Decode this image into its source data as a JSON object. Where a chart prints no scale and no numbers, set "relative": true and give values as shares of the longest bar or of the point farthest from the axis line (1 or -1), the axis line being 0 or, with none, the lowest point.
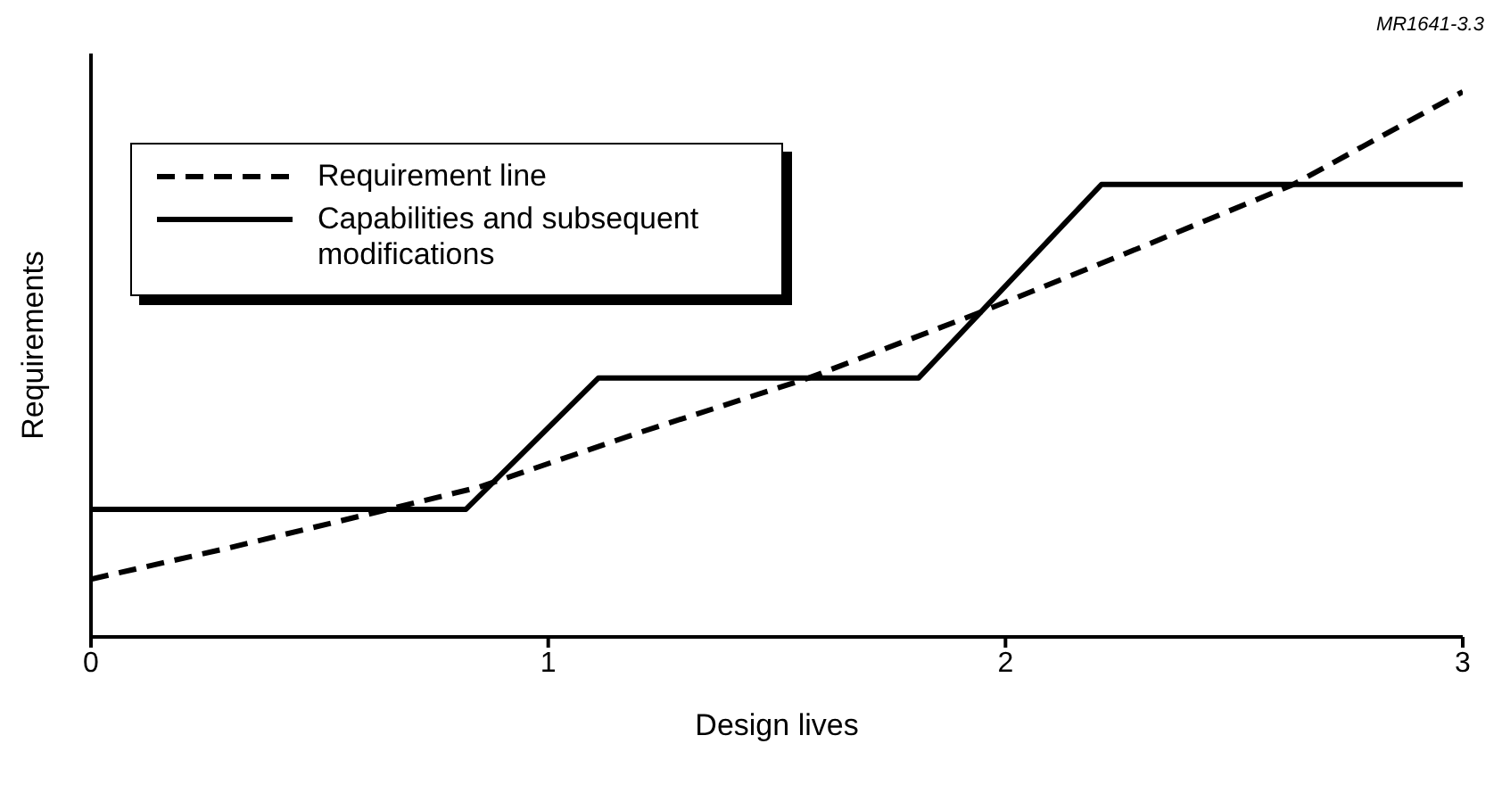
{
  "chart_data": {
    "type": "line",
    "xlabel": "Design lives",
    "ylabel": "Requirements",
    "relative": true,
    "xlim": [
      0,
      3
    ],
    "xticks": [
      0,
      1,
      2,
      3
    ],
    "legend": "top left",
    "grid": false,
    "marker": "none",
    "annotations": [
      "MR1641-3.3"
    ],
    "series": [
      {
        "name": "Requirement line",
        "color": "#000000",
        "line_style": "dashed",
        "x": [
          0,
          0.3,
          0.65,
          0.85,
          1.2,
          1.57,
          1.95,
          2.3,
          2.63,
          3
        ],
        "values": [
          0.106,
          0.163,
          0.234,
          0.275,
          0.375,
          0.475,
          0.597,
          0.716,
          0.83,
          1.0
        ]
      },
      {
        "name": "Capabilities and subsequent modifications",
        "color": "#000000",
        "line_style": "solid",
        "x": [
          0,
          0.82,
          1.11,
          1.81,
          2.21,
          3
        ],
        "values": [
          0.234,
          0.234,
          0.475,
          0.475,
          0.83,
          0.83
        ]
      }
    ]
  }
}
